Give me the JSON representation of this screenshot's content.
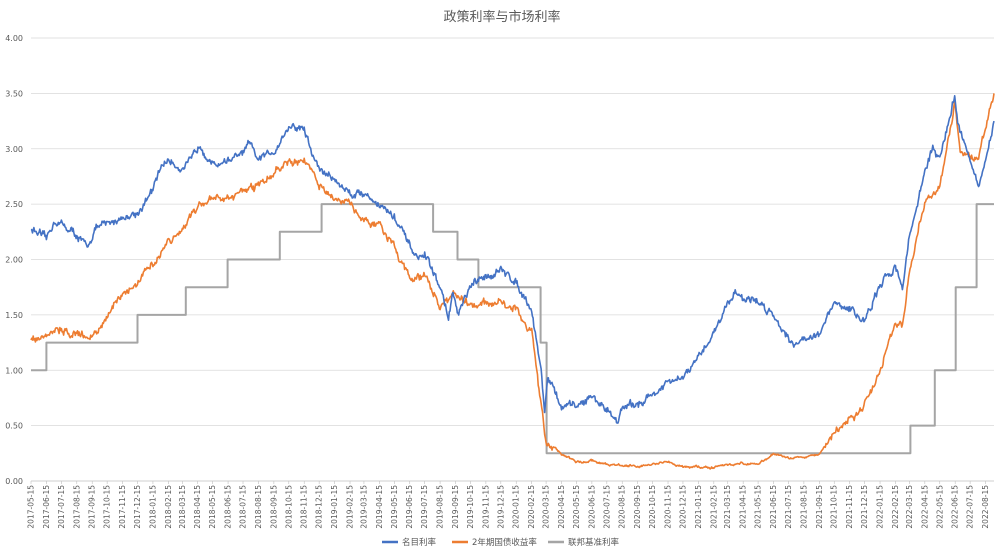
{
  "chart_data": {
    "type": "line",
    "title": "政策利率与市场利率",
    "xlabel": "",
    "ylabel": "",
    "ylim": [
      0,
      4
    ],
    "yticks": [
      "0.00",
      "0.50",
      "1.00",
      "1.50",
      "2.00",
      "2.50",
      "3.00",
      "3.50",
      "4.00"
    ],
    "grid": "horizontal",
    "legend_position": "bottom",
    "x_ticks": [
      "2017-05-15",
      "2017-06-15",
      "2017-07-15",
      "2017-08-15",
      "2017-09-15",
      "2017-10-15",
      "2017-11-15",
      "2017-12-15",
      "2018-01-15",
      "2018-02-15",
      "2018-03-15",
      "2018-04-15",
      "2018-05-15",
      "2018-06-15",
      "2018-07-15",
      "2018-08-15",
      "2018-09-15",
      "2018-10-15",
      "2018-11-15",
      "2018-12-15",
      "2019-01-15",
      "2019-02-15",
      "2019-03-15",
      "2019-04-15",
      "2019-05-15",
      "2019-06-15",
      "2019-07-15",
      "2019-08-15",
      "2019-09-15",
      "2019-10-15",
      "2019-11-15",
      "2019-12-15",
      "2020-01-15",
      "2020-02-15",
      "2020-03-15",
      "2020-04-15",
      "2020-05-15",
      "2020-06-15",
      "2020-07-15",
      "2020-08-15",
      "2020-09-15",
      "2020-10-15",
      "2020-11-15",
      "2020-12-15",
      "2021-01-15",
      "2021-02-15",
      "2021-03-15",
      "2021-04-15",
      "2021-05-15",
      "2021-06-15",
      "2021-07-15",
      "2021-08-15",
      "2021-09-15",
      "2021-10-15",
      "2021-11-15",
      "2021-12-15",
      "2022-01-15",
      "2022-02-15",
      "2022-03-15",
      "2022-04-15",
      "2022-05-15",
      "2022-06-15",
      "2022-07-15",
      "2022-08-15"
    ],
    "x_range": [
      "2017-05-15",
      "2022-09-01"
    ],
    "series": [
      {
        "name": "名目利率",
        "color": "#4472C4",
        "style": "noisy",
        "points": [
          [
            "2017-05-15",
            2.28
          ],
          [
            "2017-06-15",
            2.18
          ],
          [
            "2017-07-01",
            2.35
          ],
          [
            "2017-07-15",
            2.32
          ],
          [
            "2017-08-15",
            2.22
          ],
          [
            "2017-09-05",
            2.1
          ],
          [
            "2017-09-20",
            2.28
          ],
          [
            "2017-10-15",
            2.32
          ],
          [
            "2017-11-15",
            2.38
          ],
          [
            "2017-12-15",
            2.42
          ],
          [
            "2018-01-15",
            2.62
          ],
          [
            "2018-02-01",
            2.85
          ],
          [
            "2018-02-15",
            2.9
          ],
          [
            "2018-03-15",
            2.82
          ],
          [
            "2018-04-01",
            2.88
          ],
          [
            "2018-04-20",
            3.05
          ],
          [
            "2018-05-15",
            2.85
          ],
          [
            "2018-06-15",
            2.9
          ],
          [
            "2018-07-15",
            2.95
          ],
          [
            "2018-07-25",
            3.05
          ],
          [
            "2018-08-15",
            2.9
          ],
          [
            "2018-09-15",
            2.98
          ],
          [
            "2018-10-15",
            3.2
          ],
          [
            "2018-11-15",
            3.18
          ],
          [
            "2018-12-01",
            2.95
          ],
          [
            "2018-12-15",
            2.82
          ],
          [
            "2019-01-15",
            2.72
          ],
          [
            "2019-02-15",
            2.6
          ],
          [
            "2019-03-15",
            2.6
          ],
          [
            "2019-04-15",
            2.5
          ],
          [
            "2019-05-15",
            2.38
          ],
          [
            "2019-06-15",
            2.12
          ],
          [
            "2019-07-01",
            2.0
          ],
          [
            "2019-07-15",
            2.05
          ],
          [
            "2019-08-15",
            1.75
          ],
          [
            "2019-09-01",
            1.48
          ],
          [
            "2019-09-10",
            1.7
          ],
          [
            "2019-09-20",
            1.5
          ],
          [
            "2019-10-15",
            1.75
          ],
          [
            "2019-11-15",
            1.85
          ],
          [
            "2019-12-15",
            1.9
          ],
          [
            "2020-01-15",
            1.8
          ],
          [
            "2020-02-15",
            1.55
          ],
          [
            "2020-03-05",
            1.0
          ],
          [
            "2020-03-12",
            0.62
          ],
          [
            "2020-03-18",
            0.95
          ],
          [
            "2020-04-15",
            0.66
          ],
          [
            "2020-05-15",
            0.68
          ],
          [
            "2020-06-15",
            0.76
          ],
          [
            "2020-07-15",
            0.65
          ],
          [
            "2020-08-05",
            0.55
          ],
          [
            "2020-08-15",
            0.65
          ],
          [
            "2020-09-15",
            0.7
          ],
          [
            "2020-10-15",
            0.78
          ],
          [
            "2020-11-15",
            0.88
          ],
          [
            "2020-12-15",
            0.93
          ],
          [
            "2021-01-15",
            1.1
          ],
          [
            "2021-02-15",
            1.35
          ],
          [
            "2021-03-15",
            1.6
          ],
          [
            "2021-03-30",
            1.72
          ],
          [
            "2021-04-15",
            1.65
          ],
          [
            "2021-05-15",
            1.62
          ],
          [
            "2021-06-15",
            1.5
          ],
          [
            "2021-07-15",
            1.3
          ],
          [
            "2021-08-01",
            1.22
          ],
          [
            "2021-08-15",
            1.3
          ],
          [
            "2021-09-15",
            1.32
          ],
          [
            "2021-10-15",
            1.6
          ],
          [
            "2021-11-15",
            1.55
          ],
          [
            "2021-12-15",
            1.45
          ],
          [
            "2022-01-15",
            1.75
          ],
          [
            "2022-02-15",
            1.95
          ],
          [
            "2022-03-01",
            1.75
          ],
          [
            "2022-03-15",
            2.2
          ],
          [
            "2022-04-15",
            2.8
          ],
          [
            "2022-05-01",
            3.0
          ],
          [
            "2022-05-15",
            2.9
          ],
          [
            "2022-06-14",
            3.48
          ],
          [
            "2022-06-20",
            3.25
          ],
          [
            "2022-07-15",
            2.9
          ],
          [
            "2022-08-01",
            2.65
          ],
          [
            "2022-08-15",
            2.85
          ],
          [
            "2022-09-01",
            3.25
          ]
        ]
      },
      {
        "name": "2年期国债收益率",
        "color": "#ED7D31",
        "style": "noisy",
        "points": [
          [
            "2017-05-15",
            1.28
          ],
          [
            "2017-06-15",
            1.33
          ],
          [
            "2017-07-15",
            1.38
          ],
          [
            "2017-08-15",
            1.33
          ],
          [
            "2017-09-15",
            1.3
          ],
          [
            "2017-10-15",
            1.48
          ],
          [
            "2017-11-15",
            1.7
          ],
          [
            "2017-12-15",
            1.82
          ],
          [
            "2018-01-15",
            1.98
          ],
          [
            "2018-02-15",
            2.15
          ],
          [
            "2018-03-15",
            2.28
          ],
          [
            "2018-04-15",
            2.48
          ],
          [
            "2018-05-15",
            2.55
          ],
          [
            "2018-06-15",
            2.55
          ],
          [
            "2018-07-15",
            2.62
          ],
          [
            "2018-08-15",
            2.65
          ],
          [
            "2018-09-15",
            2.8
          ],
          [
            "2018-10-15",
            2.88
          ],
          [
            "2018-11-15",
            2.9
          ],
          [
            "2018-12-15",
            2.65
          ],
          [
            "2019-01-15",
            2.55
          ],
          [
            "2019-02-15",
            2.5
          ],
          [
            "2019-03-15",
            2.35
          ],
          [
            "2019-04-15",
            2.32
          ],
          [
            "2019-05-15",
            2.12
          ],
          [
            "2019-06-15",
            1.82
          ],
          [
            "2019-07-15",
            1.85
          ],
          [
            "2019-08-15",
            1.58
          ],
          [
            "2019-09-15",
            1.68
          ],
          [
            "2019-10-15",
            1.58
          ],
          [
            "2019-11-15",
            1.62
          ],
          [
            "2019-12-15",
            1.6
          ],
          [
            "2020-01-15",
            1.55
          ],
          [
            "2020-02-15",
            1.35
          ],
          [
            "2020-03-05",
            0.7
          ],
          [
            "2020-03-15",
            0.35
          ],
          [
            "2020-04-15",
            0.25
          ],
          [
            "2020-05-15",
            0.17
          ],
          [
            "2020-06-15",
            0.18
          ],
          [
            "2020-07-15",
            0.15
          ],
          [
            "2020-08-15",
            0.14
          ],
          [
            "2020-09-15",
            0.13
          ],
          [
            "2020-10-15",
            0.15
          ],
          [
            "2020-11-15",
            0.17
          ],
          [
            "2020-12-15",
            0.13
          ],
          [
            "2021-01-15",
            0.13
          ],
          [
            "2021-02-15",
            0.12
          ],
          [
            "2021-03-15",
            0.15
          ],
          [
            "2021-04-15",
            0.16
          ],
          [
            "2021-05-15",
            0.15
          ],
          [
            "2021-06-15",
            0.25
          ],
          [
            "2021-07-15",
            0.2
          ],
          [
            "2021-08-15",
            0.22
          ],
          [
            "2021-09-15",
            0.24
          ],
          [
            "2021-10-15",
            0.45
          ],
          [
            "2021-11-15",
            0.55
          ],
          [
            "2021-12-15",
            0.68
          ],
          [
            "2022-01-15",
            1.0
          ],
          [
            "2022-02-15",
            1.45
          ],
          [
            "2022-03-01",
            1.4
          ],
          [
            "2022-03-15",
            1.9
          ],
          [
            "2022-04-15",
            2.55
          ],
          [
            "2022-05-15",
            2.65
          ],
          [
            "2022-06-14",
            3.4
          ],
          [
            "2022-06-25",
            3.0
          ],
          [
            "2022-07-15",
            2.95
          ],
          [
            "2022-08-01",
            2.9
          ],
          [
            "2022-08-15",
            3.2
          ],
          [
            "2022-09-01",
            3.5
          ]
        ]
      },
      {
        "name": "联邦基准利率",
        "color": "#A5A5A5",
        "style": "step",
        "points": [
          [
            "2017-05-15",
            1.0
          ],
          [
            "2017-06-15",
            1.25
          ],
          [
            "2017-12-15",
            1.5
          ],
          [
            "2018-03-22",
            1.75
          ],
          [
            "2018-06-14",
            2.0
          ],
          [
            "2018-09-27",
            2.25
          ],
          [
            "2018-12-20",
            2.5
          ],
          [
            "2019-08-01",
            2.25
          ],
          [
            "2019-09-19",
            2.0
          ],
          [
            "2019-10-31",
            1.75
          ],
          [
            "2020-03-04",
            1.25
          ],
          [
            "2020-03-16",
            0.25
          ],
          [
            "2022-03-17",
            0.5
          ],
          [
            "2022-05-05",
            1.0
          ],
          [
            "2022-06-16",
            1.75
          ],
          [
            "2022-07-28",
            2.5
          ],
          [
            "2022-09-01",
            2.5
          ]
        ]
      }
    ]
  }
}
